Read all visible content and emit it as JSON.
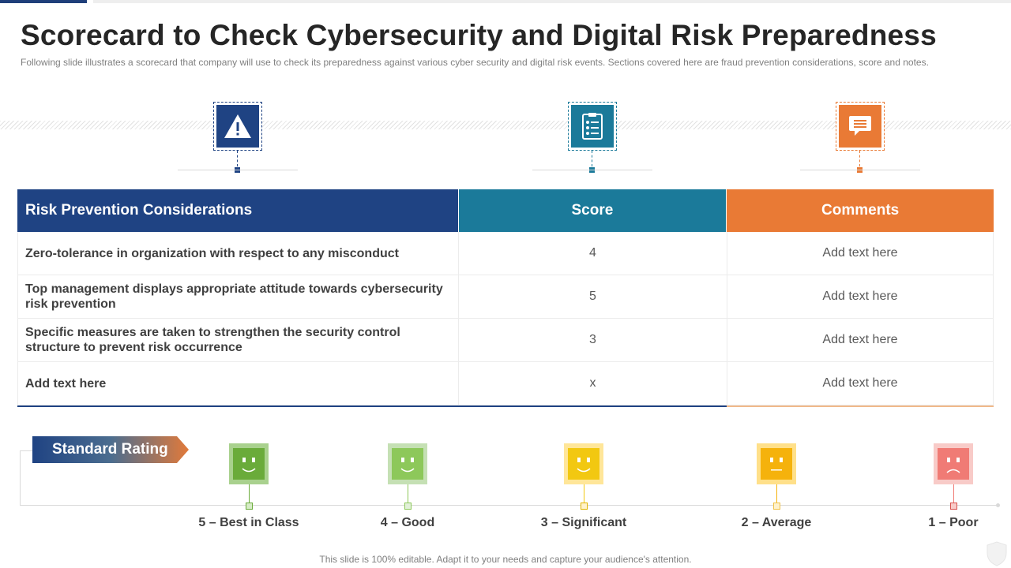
{
  "slide": {
    "title": "Scorecard to Check Cybersecurity and Digital Risk Preparedness",
    "subtitle": "Following slide illustrates a scorecard that company will use to check its preparedness  against various  cyber security and digital risk events. Sections covered here are fraud prevention  considerations, score and notes.",
    "footer": "This slide is 100% editable. Adapt it to your needs and capture your audience's attention."
  },
  "icons": [
    {
      "icon": "warning-icon",
      "color": "#1f4383"
    },
    {
      "icon": "checklist-icon",
      "color": "#1b7a9a"
    },
    {
      "icon": "comment-icon",
      "color": "#e97a35"
    }
  ],
  "table": {
    "headers": [
      "Risk Prevention Considerations",
      "Score",
      "Comments"
    ],
    "header_colors": [
      "#1f4383",
      "#1b7a9a",
      "#e97a35"
    ],
    "rows": [
      {
        "consideration": "Zero-tolerance in organization with respect to any misconduct",
        "score": "4",
        "comment": "Add text here"
      },
      {
        "consideration": "Top management displays appropriate attitude towards cybersecurity risk prevention",
        "score": "5",
        "comment": "Add text here"
      },
      {
        "consideration": "Specific measures are taken to strengthen the security control structure to prevent risk occurrence",
        "score": "3",
        "comment": "Add text here"
      },
      {
        "consideration": "Add text here",
        "score": "x",
        "comment": "Add text here"
      }
    ]
  },
  "rating": {
    "label": "Standard Rating",
    "levels": [
      {
        "label": "5 – Best in Class",
        "mood": "happy",
        "color": "#6aab3a"
      },
      {
        "label": "4 – Good",
        "mood": "happy",
        "color": "#8dc85a"
      },
      {
        "label": "3 – Significant",
        "mood": "happy",
        "color": "#f2c811"
      },
      {
        "label": "2 – Average",
        "mood": "neutral",
        "color": "#f5b20c"
      },
      {
        "label": "1 – Poor",
        "mood": "sad",
        "color": "#f07b75"
      }
    ]
  }
}
